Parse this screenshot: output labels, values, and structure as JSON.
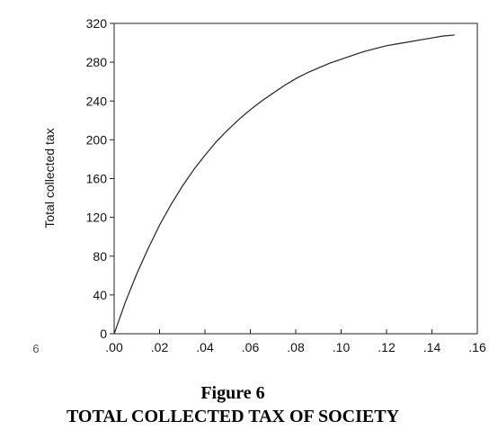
{
  "chart_data": {
    "type": "line",
    "title": "",
    "xlabel": "",
    "ylabel": "Total collected tax",
    "xlim": [
      0.0,
      0.16
    ],
    "ylim": [
      0,
      320
    ],
    "x_ticks": [
      ".00",
      ".02",
      ".04",
      ".06",
      ".08",
      ".10",
      ".12",
      ".14",
      ".16"
    ],
    "y_ticks": [
      "0",
      "40",
      "80",
      "120",
      "160",
      "200",
      "240",
      "280",
      "320"
    ],
    "grid": false,
    "legend": "none",
    "series": [
      {
        "x": [
          0.0,
          0.005,
          0.01,
          0.015,
          0.02,
          0.025,
          0.03,
          0.035,
          0.04,
          0.045,
          0.05,
          0.055,
          0.06,
          0.065,
          0.07,
          0.075,
          0.08,
          0.085,
          0.09,
          0.095,
          0.1,
          0.105,
          0.11,
          0.115,
          0.12,
          0.125,
          0.13,
          0.135,
          0.14,
          0.145,
          0.15
        ],
        "y": [
          0,
          33,
          62,
          88,
          112,
          133,
          152,
          169,
          184,
          198,
          210,
          221,
          231,
          240,
          248,
          256,
          263,
          269,
          274,
          279,
          283,
          287,
          291,
          294,
          297,
          299,
          301,
          303,
          305,
          307,
          308
        ],
        "color": "#222222"
      }
    ],
    "stray_left_label": "6"
  },
  "caption": {
    "figure_label": "Figure 6",
    "title": "TOTAL COLLECTED TAX OF SOCIETY"
  }
}
